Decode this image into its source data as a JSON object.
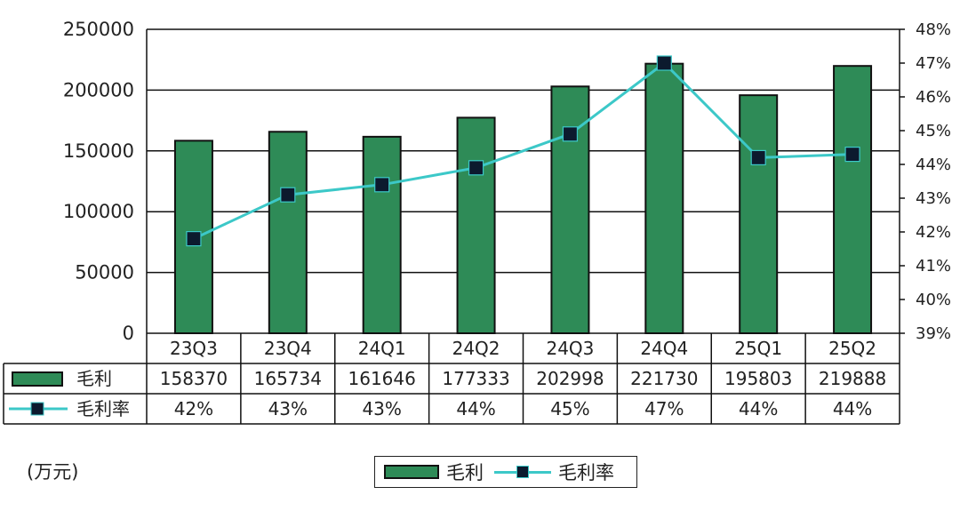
{
  "chart_data": {
    "type": "bar",
    "categories": [
      "23Q3",
      "23Q4",
      "24Q1",
      "24Q2",
      "24Q3",
      "24Q4",
      "25Q1",
      "25Q2"
    ],
    "series": [
      {
        "name": "毛利",
        "type": "bar",
        "axis": "left",
        "values": [
          158370,
          165734,
          161646,
          177333,
          202998,
          221730,
          195803,
          219888
        ],
        "color": "#2e8b57"
      },
      {
        "name": "毛利率",
        "type": "line",
        "axis": "right",
        "values": [
          41.8,
          43.1,
          43.4,
          43.9,
          44.9,
          47.0,
          44.2,
          44.3
        ],
        "color": "#3cc8c8",
        "marker_color": "#0c1a2e"
      }
    ],
    "table_rows": [
      {
        "label": "毛利",
        "cells": [
          "158370",
          "165734",
          "161646",
          "177333",
          "202998",
          "221730",
          "195803",
          "219888"
        ]
      },
      {
        "label": "毛利率",
        "cells": [
          "42%",
          "43%",
          "43%",
          "44%",
          "45%",
          "47%",
          "44%",
          "44%"
        ]
      }
    ],
    "y_left": {
      "ylim": [
        0,
        250000
      ],
      "ticks": [
        "0",
        "50000",
        "100000",
        "150000",
        "200000",
        "250000"
      ]
    },
    "y_right": {
      "ylim": [
        39,
        48
      ],
      "ticks": [
        "39%",
        "40%",
        "41%",
        "42%",
        "43%",
        "44%",
        "45%",
        "46%",
        "47%",
        "48%"
      ]
    },
    "grid": true,
    "unit_label": "(万元)",
    "legend": {
      "placement": "bottom-center",
      "items": [
        "毛利",
        "毛利率"
      ]
    }
  }
}
